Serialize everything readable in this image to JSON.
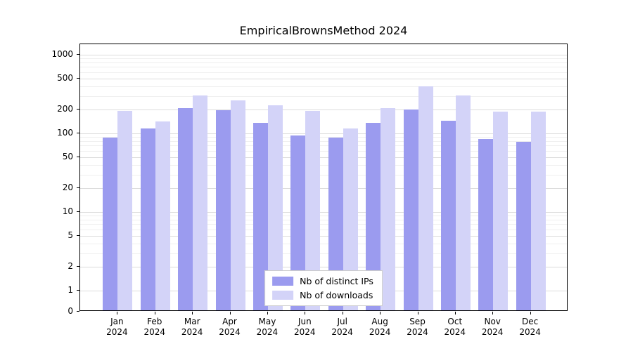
{
  "chart_data": {
    "type": "bar",
    "title": "EmpiricalBrownsMethod 2024",
    "categories": [
      "Jan",
      "Feb",
      "Mar",
      "Apr",
      "May",
      "Jun",
      "Jul",
      "Aug",
      "Sep",
      "Oct",
      "Nov",
      "Dec"
    ],
    "category_year": "2024",
    "series": [
      {
        "name": "Nb of distinct IPs",
        "color": "#9b9bef",
        "values": [
          85,
          110,
          200,
          190,
          130,
          90,
          85,
          130,
          195,
          140,
          82,
          75
        ]
      },
      {
        "name": "Nb of downloads",
        "color": "#d3d3f8",
        "values": [
          185,
          135,
          290,
          250,
          220,
          185,
          110,
          200,
          380,
          290,
          180,
          180
        ]
      }
    ],
    "xlabel": "",
    "ylabel": "",
    "yscale": "symlog",
    "yticks": [
      0,
      1,
      2,
      5,
      10,
      20,
      50,
      100,
      200,
      500,
      1000
    ],
    "yminor_ticks": [
      3,
      4,
      6,
      7,
      8,
      9,
      30,
      40,
      60,
      70,
      80,
      90,
      300,
      400,
      600,
      700,
      800,
      900
    ],
    "ylim": [
      0,
      1300
    ],
    "grid": true,
    "legend": {
      "position": "lower center",
      "entries": [
        "Nb of distinct IPs",
        "Nb of downloads"
      ]
    }
  }
}
